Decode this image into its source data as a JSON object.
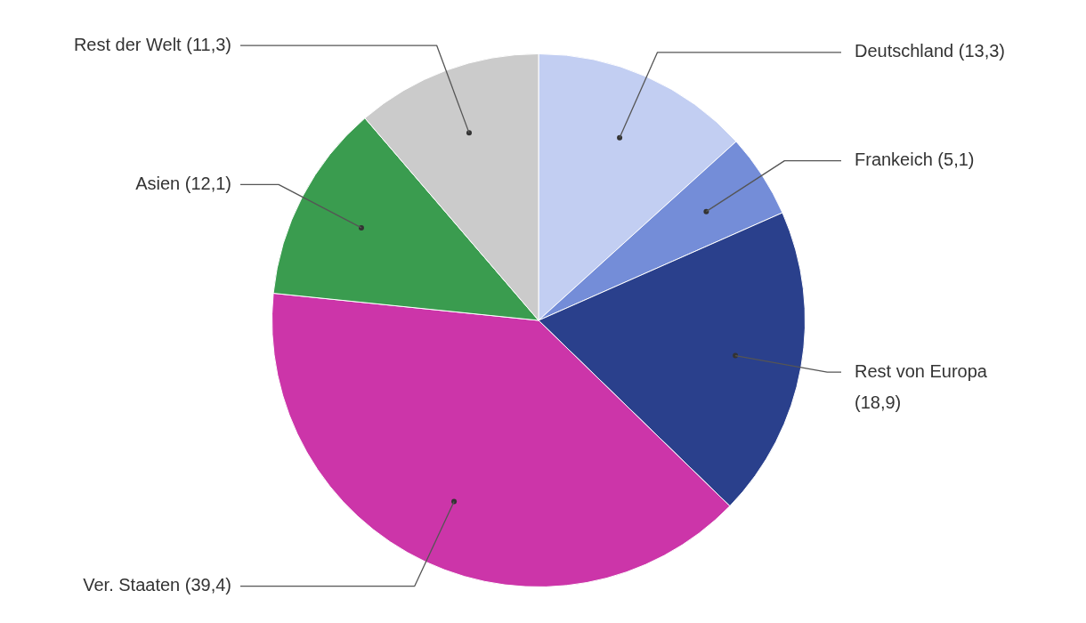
{
  "chart_data": {
    "type": "pie",
    "categories": [
      "Deutschland",
      "Frankeich",
      "Rest von Europa",
      "Ver. Staaten",
      "Asien",
      "Rest der Welt"
    ],
    "values": [
      13.3,
      5.1,
      18.9,
      39.4,
      12.1,
      11.3
    ],
    "value_labels": [
      "(13,3)",
      "(5,1)",
      "(18,9)",
      "(39,4)",
      "(12,1)",
      "(11,3)"
    ],
    "colors": [
      "#c2cef2",
      "#748dd8",
      "#2a408c",
      "#cc35a9",
      "#3a9c4f",
      "#cbcbcb"
    ],
    "legend": false
  }
}
